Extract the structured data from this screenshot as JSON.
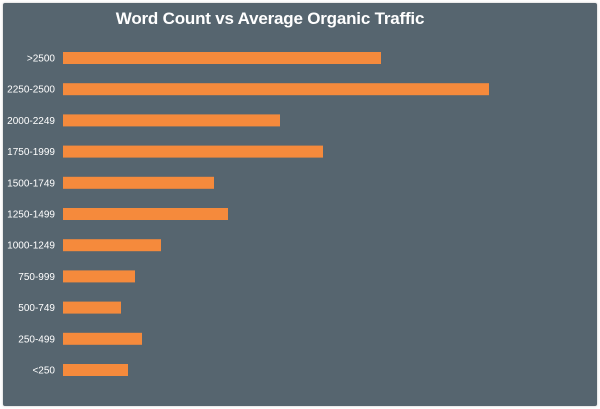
{
  "chart_data": {
    "type": "bar",
    "orientation": "horizontal",
    "title": "Word Count vs Average Organic Traffic",
    "xlabel": "",
    "ylabel": "",
    "categories": [
      ">2500",
      "2250-2500",
      "2000-2249",
      "1750-1999",
      "1500-1749",
      "1250-1499",
      "1000-1249",
      "750-999",
      "500-749",
      "250-499",
      "<250"
    ],
    "values": [
      318,
      426,
      217,
      260,
      151,
      165,
      98,
      72,
      58,
      79,
      65
    ],
    "xlim": [
      0,
      430
    ],
    "grid": false,
    "legend": "none"
  },
  "colors": {
    "background": "#56656f",
    "bar": "#f58a3c",
    "text": "#ffffff"
  }
}
